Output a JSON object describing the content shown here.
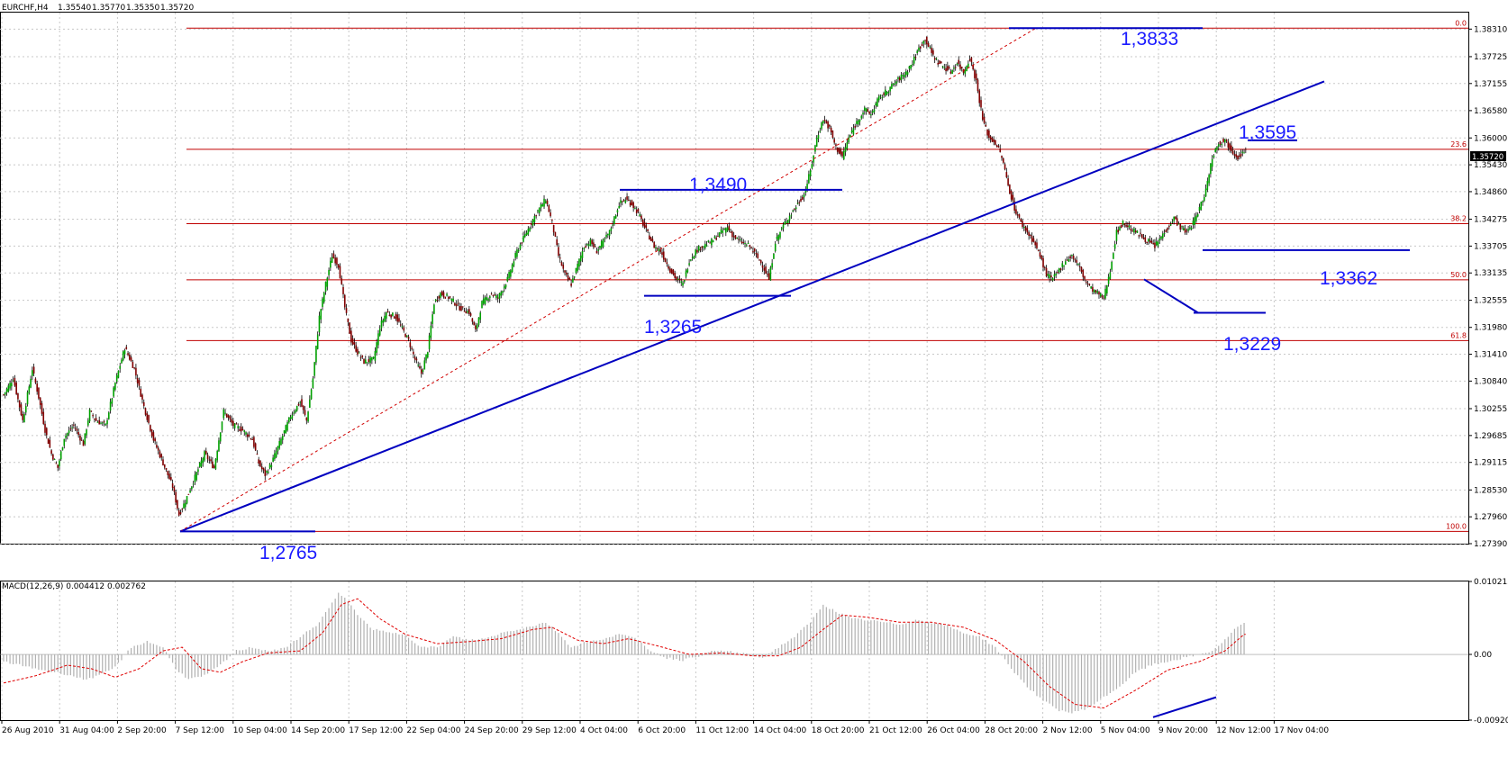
{
  "header": {
    "symbol": "EURCHF,H4",
    "open": "1.35540",
    "high": "1.35770",
    "low": "1.35350",
    "close": "1.35720"
  },
  "colors": {
    "bull_candle": "#00a000",
    "bear_candle": "#800000",
    "fib_line": "#c00000",
    "trend_line": "#0000c0",
    "grid": "#c8c8c8",
    "macd_hist": "#b0b0b0",
    "macd_signal": "#e00000"
  },
  "chart_data": [
    {
      "type": "candlestick",
      "title": "EURCHF,H4",
      "ylim": [
        1.2739,
        1.3866
      ],
      "y_ticks": [
        "1.38310",
        "1.37725",
        "1.37155",
        "1.36580",
        "1.36000",
        "1.35430",
        "1.34860",
        "1.34275",
        "1.33705",
        "1.33135",
        "1.32555",
        "1.31980",
        "1.31410",
        "1.30840",
        "1.30255",
        "1.29685",
        "1.29115",
        "1.28530",
        "1.27960",
        "1.27390"
      ],
      "current_price": "1.35720",
      "x_ticks": [
        "26 Aug 2010",
        "31 Aug 04:00",
        "2 Sep 20:00",
        "7 Sep 12:00",
        "10 Sep 04:00",
        "14 Sep 20:00",
        "17 Sep 12:00",
        "22 Sep 04:00",
        "24 Sep 20:00",
        "29 Sep 12:00",
        "4 Oct 04:00",
        "6 Oct 20:00",
        "11 Oct 12:00",
        "14 Oct 04:00",
        "18 Oct 20:00",
        "21 Oct 12:00",
        "26 Oct 04:00",
        "28 Oct 20:00",
        "2 Nov 12:00",
        "5 Nov 04:00",
        "9 Nov 20:00",
        "12 Nov 12:00",
        "17 Nov 04:00"
      ],
      "close_path": [
        [
          0,
          1.3055
        ],
        [
          6,
          1.309
        ],
        [
          12,
          1.3
        ],
        [
          18,
          1.311
        ],
        [
          22,
          1.305
        ],
        [
          26,
          1.298
        ],
        [
          30,
          1.293
        ],
        [
          34,
          1.29
        ],
        [
          38,
          1.2965
        ],
        [
          44,
          1.299
        ],
        [
          50,
          1.295
        ],
        [
          54,
          1.302
        ],
        [
          58,
          1.3
        ],
        [
          64,
          1.299
        ],
        [
          70,
          1.308
        ],
        [
          76,
          1.3155
        ],
        [
          82,
          1.311
        ],
        [
          88,
          1.303
        ],
        [
          94,
          1.296
        ],
        [
          100,
          1.291
        ],
        [
          106,
          1.286
        ],
        [
          110,
          1.28
        ],
        [
          114,
          1.283
        ],
        [
          120,
          1.288
        ],
        [
          126,
          1.293
        ],
        [
          132,
          1.29
        ],
        [
          138,
          1.302
        ],
        [
          144,
          1.299
        ],
        [
          150,
          1.298
        ],
        [
          156,
          1.296
        ],
        [
          160,
          1.291
        ],
        [
          164,
          1.2885
        ],
        [
          168,
          1.291
        ],
        [
          174,
          1.296
        ],
        [
          180,
          1.301
        ],
        [
          186,
          1.304
        ],
        [
          190,
          1.3
        ],
        [
          194,
          1.309
        ],
        [
          198,
          1.322
        ],
        [
          202,
          1.329
        ],
        [
          206,
          1.335
        ],
        [
          210,
          1.333
        ],
        [
          214,
          1.324
        ],
        [
          218,
          1.317
        ],
        [
          222,
          1.3145
        ],
        [
          226,
          1.3125
        ],
        [
          232,
          1.313
        ],
        [
          236,
          1.32
        ],
        [
          240,
          1.323
        ],
        [
          246,
          1.322
        ],
        [
          250,
          1.3195
        ],
        [
          254,
          1.317
        ],
        [
          258,
          1.313
        ],
        [
          262,
          1.31
        ],
        [
          266,
          1.315
        ],
        [
          270,
          1.325
        ],
        [
          274,
          1.327
        ],
        [
          280,
          1.326
        ],
        [
          286,
          1.324
        ],
        [
          292,
          1.323
        ],
        [
          296,
          1.319
        ],
        [
          300,
          1.325
        ],
        [
          306,
          1.327
        ],
        [
          310,
          1.326
        ],
        [
          316,
          1.33
        ],
        [
          322,
          1.336
        ],
        [
          328,
          1.34
        ],
        [
          334,
          1.344
        ],
        [
          340,
          1.347
        ],
        [
          344,
          1.342
        ],
        [
          348,
          1.335
        ],
        [
          352,
          1.331
        ],
        [
          356,
          1.329
        ],
        [
          360,
          1.333
        ],
        [
          364,
          1.337
        ],
        [
          368,
          1.338
        ],
        [
          372,
          1.336
        ],
        [
          376,
          1.338
        ],
        [
          380,
          1.34
        ],
        [
          386,
          1.346
        ],
        [
          390,
          1.347
        ],
        [
          394,
          1.346
        ],
        [
          398,
          1.344
        ],
        [
          402,
          1.341
        ],
        [
          408,
          1.337
        ],
        [
          412,
          1.336
        ],
        [
          418,
          1.332
        ],
        [
          422,
          1.33
        ],
        [
          426,
          1.329
        ],
        [
          430,
          1.334
        ],
        [
          434,
          1.336
        ],
        [
          438,
          1.337
        ],
        [
          444,
          1.338
        ],
        [
          450,
          1.34
        ],
        [
          454,
          1.341
        ],
        [
          458,
          1.339
        ],
        [
          462,
          1.338
        ],
        [
          468,
          1.337
        ],
        [
          472,
          1.335
        ],
        [
          476,
          1.333
        ],
        [
          480,
          1.33
        ],
        [
          484,
          1.338
        ],
        [
          490,
          1.342
        ],
        [
          496,
          1.345
        ],
        [
          502,
          1.348
        ],
        [
          506,
          1.353
        ],
        [
          510,
          1.36
        ],
        [
          514,
          1.364
        ],
        [
          518,
          1.362
        ],
        [
          522,
          1.358
        ],
        [
          526,
          1.356
        ],
        [
          530,
          1.36
        ],
        [
          536,
          1.364
        ],
        [
          540,
          1.366
        ],
        [
          544,
          1.365
        ],
        [
          548,
          1.368
        ],
        [
          554,
          1.37
        ],
        [
          560,
          1.372
        ],
        [
          566,
          1.374
        ],
        [
          570,
          1.376
        ],
        [
          574,
          1.379
        ],
        [
          578,
          1.381
        ],
        [
          582,
          1.378
        ],
        [
          586,
          1.376
        ],
        [
          590,
          1.375
        ],
        [
          594,
          1.374
        ],
        [
          598,
          1.376
        ],
        [
          602,
          1.374
        ],
        [
          606,
          1.377
        ],
        [
          610,
          1.372
        ],
        [
          614,
          1.364
        ],
        [
          618,
          1.36
        ],
        [
          622,
          1.359
        ],
        [
          626,
          1.356
        ],
        [
          630,
          1.35
        ],
        [
          634,
          1.345
        ],
        [
          638,
          1.342
        ],
        [
          642,
          1.34
        ],
        [
          646,
          1.338
        ],
        [
          650,
          1.335
        ],
        [
          654,
          1.331
        ],
        [
          658,
          1.33
        ],
        [
          662,
          1.332
        ],
        [
          666,
          1.334
        ],
        [
          670,
          1.335
        ],
        [
          674,
          1.333
        ],
        [
          678,
          1.33
        ],
        [
          682,
          1.328
        ],
        [
          686,
          1.327
        ],
        [
          690,
          1.326
        ],
        [
          694,
          1.332
        ],
        [
          698,
          1.34
        ],
        [
          702,
          1.342
        ],
        [
          706,
          1.341
        ],
        [
          710,
          1.34
        ],
        [
          714,
          1.339
        ],
        [
          718,
          1.338
        ],
        [
          722,
          1.337
        ],
        [
          726,
          1.339
        ],
        [
          730,
          1.341
        ],
        [
          734,
          1.343
        ],
        [
          738,
          1.341
        ],
        [
          742,
          1.34
        ],
        [
          746,
          1.342
        ],
        [
          750,
          1.345
        ],
        [
          754,
          1.349
        ],
        [
          758,
          1.356
        ],
        [
          762,
          1.359
        ],
        [
          766,
          1.3595
        ],
        [
          770,
          1.3575
        ],
        [
          774,
          1.356
        ],
        [
          778,
          1.3572
        ]
      ],
      "fibonacci": [
        {
          "label": "0.0",
          "price": 1.3833
        },
        {
          "label": "23.6",
          "price": 1.3576
        },
        {
          "label": "38.2",
          "price": 1.3418
        },
        {
          "label": "50.0",
          "price": 1.3299
        },
        {
          "label": "61.8",
          "price": 1.317
        },
        {
          "label": "100.0",
          "price": 1.2765
        }
      ],
      "annotations": [
        "1,3833",
        "1,3595",
        "1,3490",
        "1,3362",
        "1,3265",
        "1,3229",
        "1,2765"
      ]
    },
    {
      "type": "bar",
      "title": "MACD(12,26,9) 0.004412 0.002762",
      "ylim": [
        -0.0092,
        0.010215
      ],
      "y_ticks": [
        "0.010215",
        "0.00",
        "-0.00920"
      ],
      "histogram_path": [
        [
          0,
          -0.001
        ],
        [
          20,
          -0.002
        ],
        [
          40,
          -0.0028
        ],
        [
          50,
          -0.0035
        ],
        [
          60,
          -0.003
        ],
        [
          70,
          -0.0018
        ],
        [
          80,
          0.001
        ],
        [
          90,
          0.0018
        ],
        [
          100,
          0.001
        ],
        [
          108,
          -0.002
        ],
        [
          116,
          -0.0035
        ],
        [
          126,
          -0.003
        ],
        [
          136,
          -0.0015
        ],
        [
          146,
          0.0005
        ],
        [
          156,
          0.001
        ],
        [
          166,
          0.0005
        ],
        [
          176,
          0.0008
        ],
        [
          186,
          0.0025
        ],
        [
          196,
          0.004
        ],
        [
          204,
          0.0065
        ],
        [
          210,
          0.0085
        ],
        [
          216,
          0.0075
        ],
        [
          224,
          0.005
        ],
        [
          232,
          0.0035
        ],
        [
          242,
          0.003
        ],
        [
          252,
          0.0028
        ],
        [
          262,
          0.001
        ],
        [
          272,
          0.001
        ],
        [
          282,
          0.0025
        ],
        [
          292,
          0.002
        ],
        [
          302,
          0.0022
        ],
        [
          312,
          0.003
        ],
        [
          322,
          0.0035
        ],
        [
          332,
          0.004
        ],
        [
          340,
          0.0045
        ],
        [
          348,
          0.003
        ],
        [
          356,
          0.001
        ],
        [
          366,
          0.0018
        ],
        [
          376,
          0.002
        ],
        [
          386,
          0.003
        ],
        [
          396,
          0.0022
        ],
        [
          406,
          0.0005
        ],
        [
          416,
          -0.0005
        ],
        [
          426,
          -0.0008
        ],
        [
          436,
          -0.0002
        ],
        [
          446,
          0.0005
        ],
        [
          456,
          0.0004
        ],
        [
          466,
          0.0
        ],
        [
          476,
          -0.0005
        ],
        [
          486,
          0.001
        ],
        [
          496,
          0.0025
        ],
        [
          506,
          0.0045
        ],
        [
          514,
          0.007
        ],
        [
          522,
          0.006
        ],
        [
          532,
          0.005
        ],
        [
          542,
          0.0048
        ],
        [
          552,
          0.0045
        ],
        [
          562,
          0.0042
        ],
        [
          572,
          0.0048
        ],
        [
          582,
          0.0045
        ],
        [
          592,
          0.004
        ],
        [
          602,
          0.003
        ],
        [
          612,
          0.0025
        ],
        [
          622,
          0.001
        ],
        [
          632,
          -0.002
        ],
        [
          642,
          -0.0045
        ],
        [
          652,
          -0.0065
        ],
        [
          662,
          -0.0078
        ],
        [
          670,
          -0.0082
        ],
        [
          680,
          -0.0075
        ],
        [
          690,
          -0.006
        ],
        [
          700,
          -0.0045
        ],
        [
          710,
          -0.0025
        ],
        [
          720,
          -0.0015
        ],
        [
          730,
          -0.001
        ],
        [
          740,
          -0.0005
        ],
        [
          750,
          0.0
        ],
        [
          758,
          0.0005
        ],
        [
          766,
          0.002
        ],
        [
          772,
          0.0035
        ],
        [
          778,
          0.0044
        ]
      ],
      "signal_path": [
        [
          0,
          -0.004
        ],
        [
          20,
          -0.003
        ],
        [
          40,
          -0.0015
        ],
        [
          55,
          -0.002
        ],
        [
          70,
          -0.0032
        ],
        [
          85,
          -0.002
        ],
        [
          100,
          0.0005
        ],
        [
          112,
          0.001
        ],
        [
          124,
          -0.002
        ],
        [
          136,
          -0.0025
        ],
        [
          150,
          -0.001
        ],
        [
          166,
          0.0002
        ],
        [
          186,
          0.0005
        ],
        [
          200,
          0.003
        ],
        [
          212,
          0.007
        ],
        [
          222,
          0.0078
        ],
        [
          236,
          0.005
        ],
        [
          252,
          0.0028
        ],
        [
          272,
          0.0015
        ],
        [
          292,
          0.0018
        ],
        [
          312,
          0.0022
        ],
        [
          332,
          0.0035
        ],
        [
          344,
          0.0038
        ],
        [
          360,
          0.002
        ],
        [
          376,
          0.0015
        ],
        [
          392,
          0.0022
        ],
        [
          410,
          0.0012
        ],
        [
          430,
          0.0
        ],
        [
          450,
          0.0002
        ],
        [
          470,
          -0.0002
        ],
        [
          486,
          -0.0002
        ],
        [
          500,
          0.001
        ],
        [
          514,
          0.0035
        ],
        [
          526,
          0.0055
        ],
        [
          542,
          0.0052
        ],
        [
          562,
          0.0045
        ],
        [
          582,
          0.0045
        ],
        [
          602,
          0.0038
        ],
        [
          622,
          0.002
        ],
        [
          640,
          -0.001
        ],
        [
          656,
          -0.0045
        ],
        [
          672,
          -0.007
        ],
        [
          690,
          -0.0075
        ],
        [
          710,
          -0.005
        ],
        [
          730,
          -0.0022
        ],
        [
          750,
          -0.001
        ],
        [
          766,
          0.0005
        ],
        [
          778,
          0.0028
        ]
      ],
      "divergence_label": ""
    }
  ]
}
